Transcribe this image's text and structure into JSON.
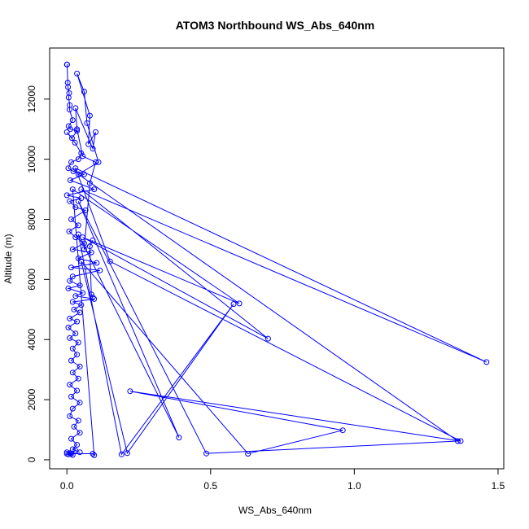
{
  "chart_data": {
    "type": "line",
    "title": "ATOM3 Northbound WS_Abs_640nm",
    "xlabel": "WS_Abs_640nm",
    "ylabel": "Altitude (m)",
    "xlim": [
      -0.06,
      1.52
    ],
    "ylim": [
      -300,
      13700
    ],
    "x_ticks": [
      "0.0",
      "0.5",
      "1.0",
      "1.5"
    ],
    "x_tick_values": [
      0,
      0.5,
      1.0,
      1.5
    ],
    "y_ticks": [
      "0",
      "2000",
      "4000",
      "6000",
      "8000",
      "10000",
      "12000"
    ],
    "y_tick_values": [
      0,
      2000,
      4000,
      6000,
      8000,
      10000,
      12000
    ],
    "grid": false,
    "marker": "open-circle",
    "series": [
      {
        "color": "#0000ff",
        "points": [
          [
            0.0,
            13150
          ],
          [
            0.001,
            13150
          ],
          [
            0.003,
            12550
          ],
          [
            0.004,
            12400
          ],
          [
            0.008,
            12200
          ],
          [
            0.006,
            12050
          ],
          [
            0.01,
            11800
          ],
          [
            0.009,
            11650
          ],
          [
            0.02,
            11300
          ],
          [
            0.006,
            11100
          ],
          [
            0.012,
            11000
          ],
          [
            0.035,
            10950
          ],
          [
            0.018,
            10700
          ],
          [
            0.0,
            10900
          ],
          [
            0.028,
            10550
          ],
          [
            0.05,
            10200
          ],
          [
            0.04,
            10000
          ],
          [
            0.015,
            9900
          ],
          [
            0.005,
            9700
          ],
          [
            0.022,
            9600
          ],
          [
            0.06,
            9500
          ],
          [
            0.012,
            9300
          ],
          [
            0.095,
            9000
          ],
          [
            0.0,
            8800
          ],
          [
            0.05,
            8700
          ],
          [
            0.01,
            8600
          ],
          [
            0.03,
            8400
          ],
          [
            0.065,
            8300
          ],
          [
            0.015,
            8000
          ],
          [
            0.04,
            7800
          ],
          [
            0.008,
            7600
          ],
          [
            0.03,
            7400
          ],
          [
            0.06,
            7200
          ],
          [
            0.02,
            7000
          ],
          [
            0.085,
            6900
          ],
          [
            0.04,
            6700
          ],
          [
            0.104,
            6550
          ],
          [
            0.015,
            6400
          ],
          [
            0.115,
            6300
          ],
          [
            0.02,
            6100
          ],
          [
            0.01,
            5950
          ],
          [
            0.045,
            5800
          ],
          [
            0.005,
            5700
          ],
          [
            0.055,
            5550
          ],
          [
            0.03,
            5450
          ],
          [
            0.095,
            5350
          ],
          [
            0.02,
            5250
          ],
          [
            0.05,
            5150
          ],
          [
            0.025,
            5000
          ],
          [
            0.045,
            4900
          ],
          [
            0.01,
            4700
          ],
          [
            0.035,
            4600
          ],
          [
            0.005,
            4400
          ],
          [
            0.03,
            4200
          ],
          [
            0.01,
            4050
          ],
          [
            0.04,
            3900
          ],
          [
            0.02,
            3700
          ],
          [
            0.035,
            3500
          ],
          [
            0.015,
            3300
          ],
          [
            0.045,
            3100
          ],
          [
            0.02,
            2900
          ],
          [
            0.04,
            2700
          ],
          [
            0.01,
            2500
          ],
          [
            0.035,
            2300
          ],
          [
            0.015,
            2100
          ],
          [
            0.045,
            1900
          ],
          [
            0.02,
            1700
          ],
          [
            0.01,
            1450
          ],
          [
            0.04,
            1300
          ],
          [
            0.025,
            1100
          ],
          [
            0.045,
            900
          ],
          [
            0.015,
            700
          ],
          [
            0.035,
            500
          ],
          [
            0.02,
            350
          ],
          [
            0.045,
            250
          ],
          [
            0.03,
            300
          ],
          [
            0.0,
            200
          ],
          [
            0.012,
            220
          ],
          [
            0.005,
            180
          ],
          [
            0.02,
            160
          ],
          [
            0.0,
            250
          ],
          [
            0.015,
            200
          ],
          [
            0.09,
            200
          ],
          [
            0.095,
            150
          ],
          [
            0.02,
            9000
          ],
          [
            0.6,
            5200
          ],
          [
            0.055,
            7400
          ],
          [
            0.7,
            4030
          ],
          [
            0.05,
            9000
          ],
          [
            1.46,
            3250
          ],
          [
            0.03,
            9700
          ],
          [
            0.15,
            6600
          ],
          [
            1.37,
            620
          ],
          [
            0.22,
            2280
          ],
          [
            0.96,
            980
          ],
          [
            0.63,
            200
          ],
          [
            0.05,
            6600
          ],
          [
            0.21,
            220
          ],
          [
            0.58,
            5180
          ],
          [
            0.19,
            180
          ],
          [
            0.04,
            7500
          ],
          [
            0.39,
            740
          ],
          [
            0.04,
            8600
          ],
          [
            0.485,
            210
          ],
          [
            1.36,
            620
          ],
          [
            0.04,
            9500
          ],
          [
            0.11,
            9900
          ],
          [
            0.07,
            11200
          ],
          [
            0.06,
            12250
          ],
          [
            0.035,
            12850
          ],
          [
            0.08,
            11450
          ],
          [
            0.075,
            10500
          ],
          [
            0.1,
            10900
          ],
          [
            0.09,
            10350
          ],
          [
            0.03,
            11700
          ],
          [
            0.035,
            11000
          ],
          [
            0.055,
            10100
          ],
          [
            0.1,
            9900
          ],
          [
            0.08,
            9200
          ],
          [
            0.06,
            7000
          ],
          [
            0.09,
            7300
          ],
          [
            0.08,
            7100
          ],
          [
            0.085,
            5500
          ],
          [
            0.09,
            5400
          ]
        ]
      }
    ]
  }
}
